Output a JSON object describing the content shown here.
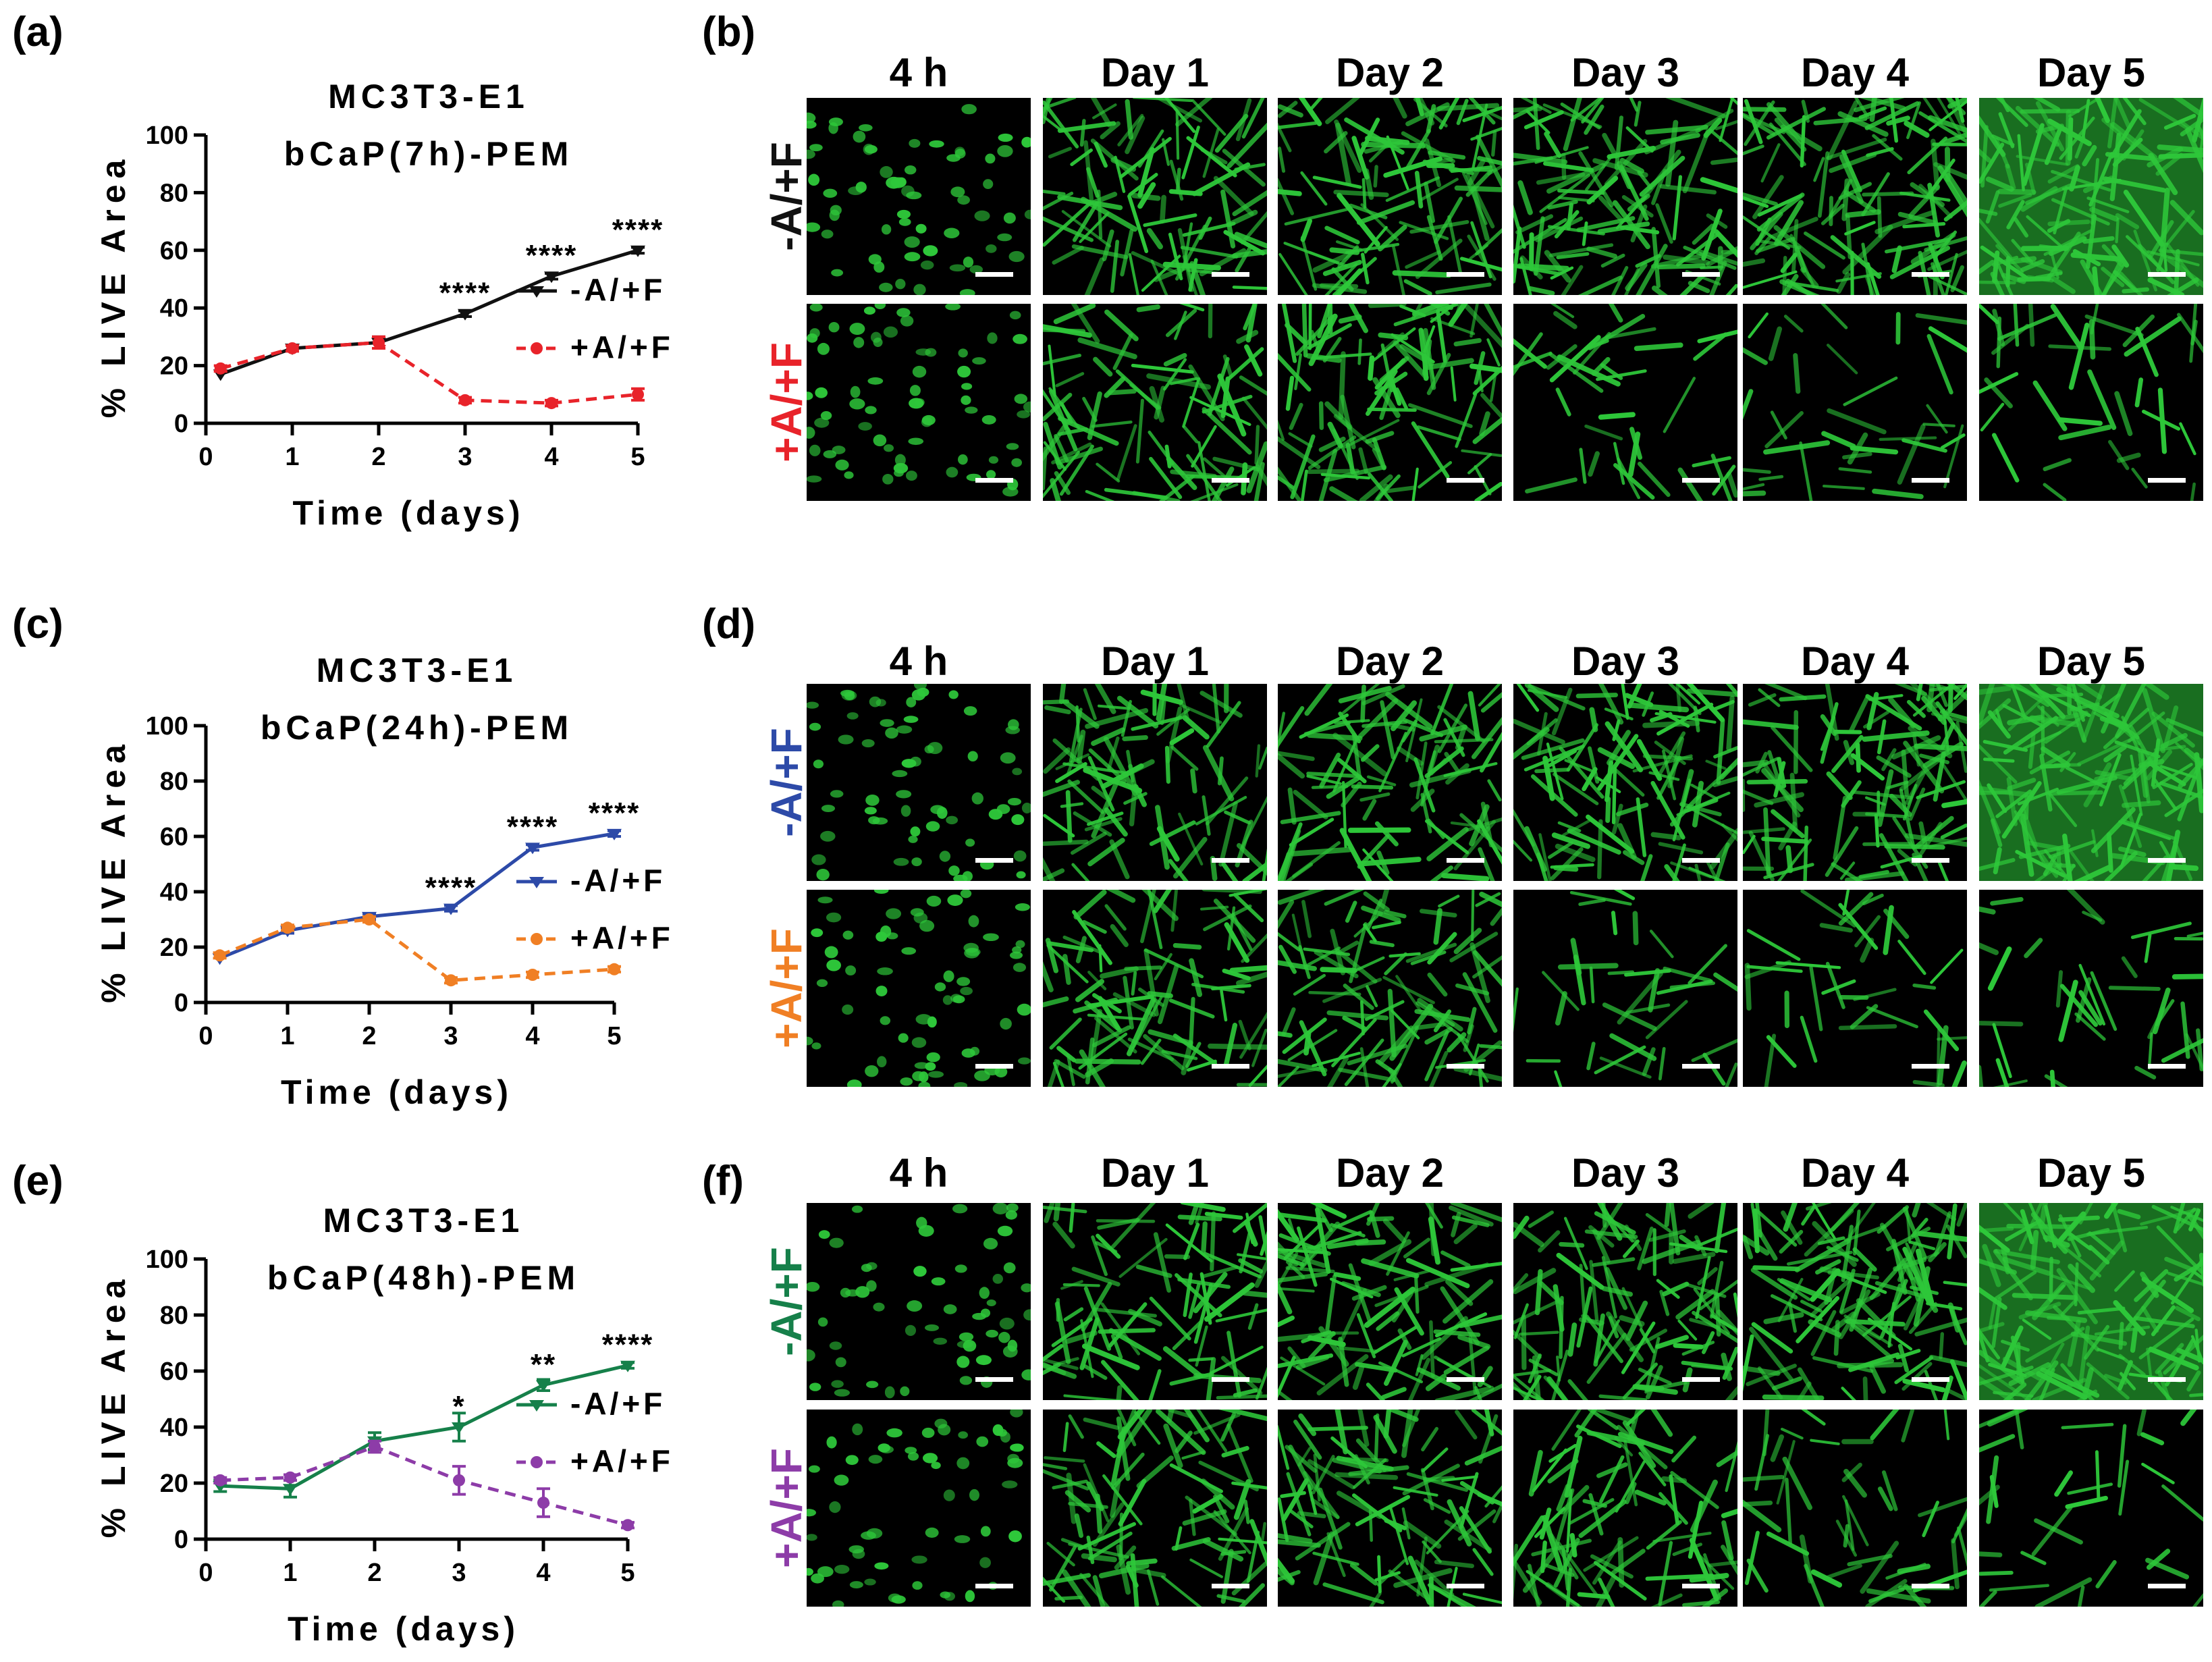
{
  "panels": {
    "a": "(a)",
    "b": "(b)",
    "c": "(c)",
    "d": "(d)",
    "e": "(e)",
    "f": "(f)"
  },
  "image_columns": [
    "4 h",
    "Day 1",
    "Day 2",
    "Day 3",
    "Day 4",
    "Day 5"
  ],
  "image_rows": [
    {
      "label": "-A/+F",
      "color": "#111111"
    },
    {
      "label": "+A/+F",
      "color": "#e8232a"
    },
    {
      "label": "-A/+F",
      "color": "#2d4aa8"
    },
    {
      "label": "+A/+F",
      "color": "#f07f24"
    },
    {
      "label": "-A/+F",
      "color": "#16804a"
    },
    {
      "label": "+A/+F",
      "color": "#8d3ca8"
    }
  ],
  "colors": {
    "cells": "#2ec83a",
    "background": "#000000",
    "scale_bar": "#ffffff"
  },
  "chart_data": [
    {
      "type": "line",
      "title": [
        "MC3T3-E1",
        "bCaP(7h)-PEM"
      ],
      "xlabel": "Time (days)",
      "ylabel": "% LIVE Area",
      "xlim": [
        0,
        5
      ],
      "ylim": [
        0,
        100
      ],
      "xticks": [
        1,
        2,
        3,
        4,
        5
      ],
      "yticks": [
        0,
        20,
        40,
        60,
        80,
        100
      ],
      "x": [
        0.17,
        1,
        2,
        3,
        4,
        5
      ],
      "series": [
        {
          "name": "-A/+F",
          "color": "#111111",
          "dashed": false,
          "marker": "triangle-down",
          "values": [
            17,
            26,
            28,
            38,
            51,
            60
          ],
          "errors": [
            0,
            1,
            2,
            1,
            1,
            1
          ]
        },
        {
          "name": "+A/+F",
          "color": "#e8232a",
          "dashed": true,
          "marker": "circle",
          "values": [
            19,
            26,
            28,
            8,
            7,
            10
          ],
          "errors": [
            1,
            1,
            2,
            1,
            1,
            2
          ]
        }
      ],
      "annotations": [
        {
          "x": 3,
          "y": 38,
          "text": "****"
        },
        {
          "x": 4,
          "y": 51,
          "text": "****"
        },
        {
          "x": 5,
          "y": 60,
          "text": "****"
        }
      ],
      "legend": "right"
    },
    {
      "type": "line",
      "title": [
        "MC3T3-E1",
        "bCaP(24h)-PEM"
      ],
      "xlabel": "Time (days)",
      "ylabel": "% LIVE Area",
      "xlim": [
        0,
        5
      ],
      "ylim": [
        0,
        100
      ],
      "xticks": [
        1,
        2,
        3,
        4,
        5
      ],
      "yticks": [
        0,
        20,
        40,
        60,
        80,
        100
      ],
      "x": [
        0.17,
        1,
        2,
        3,
        4,
        5
      ],
      "series": [
        {
          "name": "-A/+F",
          "color": "#2d4aa8",
          "dashed": false,
          "marker": "triangle-down",
          "values": [
            16,
            26,
            31,
            34,
            56,
            61
          ],
          "errors": [
            0,
            1,
            1,
            1,
            1,
            1
          ]
        },
        {
          "name": "+A/+F",
          "color": "#f07f24",
          "dashed": true,
          "marker": "circle",
          "values": [
            17,
            27,
            30,
            8,
            10,
            12
          ],
          "errors": [
            1,
            1,
            1,
            1,
            1,
            1
          ]
        }
      ],
      "annotations": [
        {
          "x": 3,
          "y": 34,
          "text": "****"
        },
        {
          "x": 4,
          "y": 56,
          "text": "****"
        },
        {
          "x": 5,
          "y": 61,
          "text": "****"
        }
      ],
      "legend": "right"
    },
    {
      "type": "line",
      "title": [
        "MC3T3-E1",
        "bCaP(48h)-PEM"
      ],
      "xlabel": "Time (days)",
      "ylabel": "% LIVE Area",
      "xlim": [
        0,
        5
      ],
      "ylim": [
        0,
        100
      ],
      "xticks": [
        1,
        2,
        3,
        4,
        5
      ],
      "yticks": [
        0,
        20,
        40,
        60,
        80,
        100
      ],
      "x": [
        0.17,
        1,
        2,
        3,
        4,
        5
      ],
      "series": [
        {
          "name": "-A/+F",
          "color": "#16804a",
          "dashed": false,
          "marker": "triangle-down",
          "values": [
            19,
            18,
            35,
            40,
            55,
            62
          ],
          "errors": [
            2,
            3,
            3,
            5,
            2,
            1
          ]
        },
        {
          "name": "+A/+F",
          "color": "#8d3ca8",
          "dashed": true,
          "marker": "circle",
          "values": [
            21,
            22,
            33,
            21,
            13,
            5
          ],
          "errors": [
            1,
            1,
            2,
            5,
            5,
            1
          ]
        }
      ],
      "annotations": [
        {
          "x": 3,
          "y": 40,
          "text": "*"
        },
        {
          "x": 4,
          "y": 55,
          "text": "**"
        },
        {
          "x": 5,
          "y": 62,
          "text": "****"
        }
      ],
      "legend": "right"
    }
  ]
}
